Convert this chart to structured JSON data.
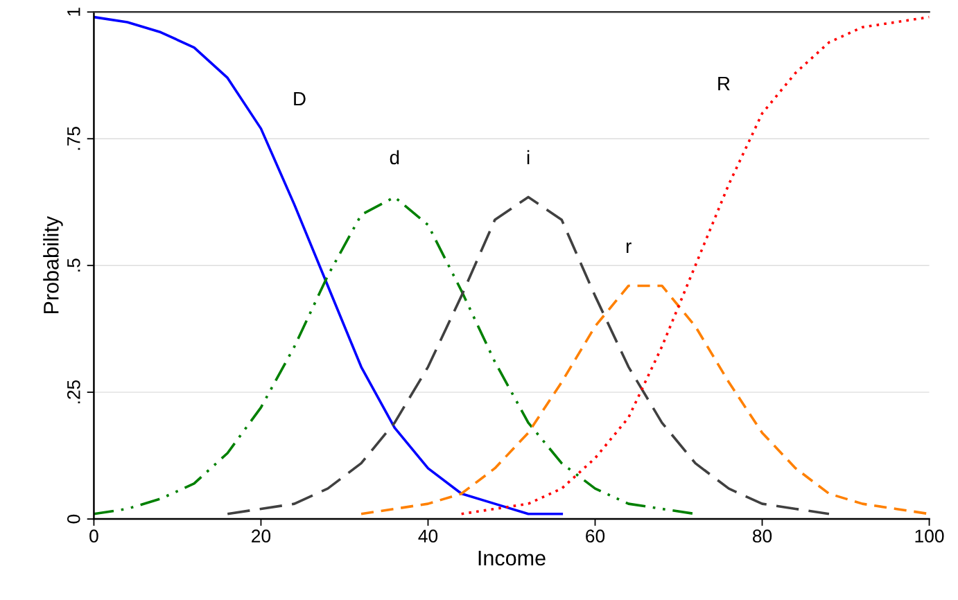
{
  "chart_data": {
    "type": "line",
    "xlabel": "Income",
    "ylabel": "Probability",
    "x": [
      0,
      4,
      8,
      12,
      16,
      20,
      24,
      28,
      32,
      36,
      40,
      44,
      48,
      52,
      56,
      60,
      64,
      68,
      72,
      76,
      80,
      84,
      88,
      92,
      96,
      100
    ],
    "series": [
      {
        "name": "D",
        "color": "#0000ff",
        "line_style": "solid",
        "values": [
          0.99,
          0.98,
          0.96,
          0.93,
          0.87,
          0.77,
          0.62,
          0.46,
          0.3,
          0.18,
          0.1,
          0.05,
          0.03,
          0.01,
          0.01,
          null,
          null,
          null,
          null,
          null,
          null,
          null,
          null,
          null,
          null,
          null
        ]
      },
      {
        "name": "d",
        "color": "#008000",
        "line_style": "dashdot",
        "values": [
          0.01,
          0.02,
          0.04,
          0.07,
          0.13,
          0.22,
          0.34,
          0.48,
          0.6,
          0.635,
          0.58,
          0.45,
          0.31,
          0.19,
          0.11,
          0.06,
          0.03,
          0.02,
          0.01,
          null,
          null,
          null,
          null,
          null,
          null,
          null
        ]
      },
      {
        "name": "i",
        "color": "#404040",
        "line_style": "longdash",
        "values": [
          null,
          null,
          null,
          null,
          0.01,
          0.02,
          0.03,
          0.06,
          0.11,
          0.19,
          0.3,
          0.44,
          0.59,
          0.635,
          0.59,
          0.44,
          0.3,
          0.19,
          0.11,
          0.06,
          0.03,
          0.02,
          0.01,
          null,
          null,
          null
        ]
      },
      {
        "name": "r",
        "color": "#ff8000",
        "line_style": "dashed",
        "values": [
          null,
          null,
          null,
          null,
          null,
          null,
          null,
          null,
          0.01,
          0.02,
          0.03,
          0.05,
          0.1,
          0.17,
          0.27,
          0.38,
          0.46,
          0.46,
          0.38,
          0.27,
          0.17,
          0.1,
          0.05,
          0.03,
          0.02,
          0.01
        ]
      },
      {
        "name": "R",
        "color": "#ff0000",
        "line_style": "dotted",
        "values": [
          null,
          null,
          null,
          null,
          null,
          null,
          null,
          null,
          null,
          null,
          null,
          0.01,
          0.02,
          0.03,
          0.06,
          0.12,
          0.2,
          0.34,
          0.5,
          0.66,
          0.8,
          0.88,
          0.94,
          0.97,
          0.98,
          0.99
        ]
      }
    ],
    "xlim": [
      0,
      100
    ],
    "xticks": [
      0,
      20,
      40,
      60,
      80,
      100
    ],
    "ylim": [
      0,
      1
    ],
    "yticks": [
      0,
      {
        "value": 0.25,
        "label": ".25"
      },
      {
        "value": 0.5,
        "label": ".5"
      },
      {
        "value": 0.75,
        "label": ".75"
      },
      1
    ],
    "grid": "y"
  }
}
